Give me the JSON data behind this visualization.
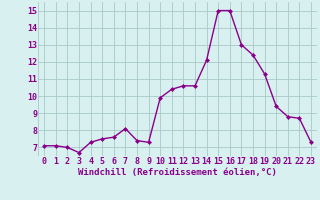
{
  "x": [
    0,
    1,
    2,
    3,
    4,
    5,
    6,
    7,
    8,
    9,
    10,
    11,
    12,
    13,
    14,
    15,
    16,
    17,
    18,
    19,
    20,
    21,
    22,
    23
  ],
  "y": [
    7.1,
    7.1,
    7.0,
    6.7,
    7.3,
    7.5,
    7.6,
    8.1,
    7.4,
    7.3,
    9.9,
    10.4,
    10.6,
    10.6,
    12.1,
    15.0,
    15.0,
    13.0,
    12.4,
    11.3,
    9.4,
    8.8,
    8.7,
    7.3
  ],
  "line_color": "#8b008b",
  "marker": "D",
  "marker_size": 2.0,
  "bg_color": "#d8f0f0",
  "grid_color": "#a8c8c8",
  "xlabel": "Windchill (Refroidissement éolien,°C)",
  "xlabel_fontsize": 6.5,
  "ylim": [
    6.5,
    15.5
  ],
  "xlim": [
    -0.5,
    23.5
  ],
  "yticks": [
    7,
    8,
    9,
    10,
    11,
    12,
    13,
    14,
    15
  ],
  "xticks": [
    0,
    1,
    2,
    3,
    4,
    5,
    6,
    7,
    8,
    9,
    10,
    11,
    12,
    13,
    14,
    15,
    16,
    17,
    18,
    19,
    20,
    21,
    22,
    23
  ],
  "tick_fontsize": 6.0,
  "tick_color": "#8b008b",
  "line_width": 1.0
}
